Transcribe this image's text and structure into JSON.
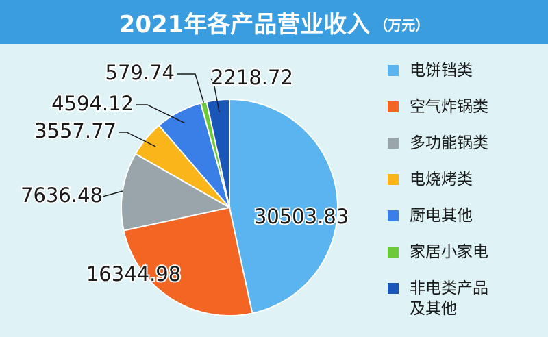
{
  "chart_data": {
    "type": "pie",
    "title": "2021年各产品营业收入",
    "subtitle": "（万元）",
    "categories": [
      "电饼铛类",
      "空气炸锅类",
      "多功能锅类",
      "电烧烤类",
      "厨电其他",
      "家居小家电",
      "非电类产品及其他"
    ],
    "values": [
      30503.83,
      16344.98,
      7636.48,
      3557.77,
      4594.12,
      579.74,
      2218.72
    ],
    "colors": [
      "#5ab4f0",
      "#f26522",
      "#9aa5ab",
      "#f9b51a",
      "#3a7ee8",
      "#6cc93a",
      "#1a56b8"
    ],
    "legend": "right"
  }
}
